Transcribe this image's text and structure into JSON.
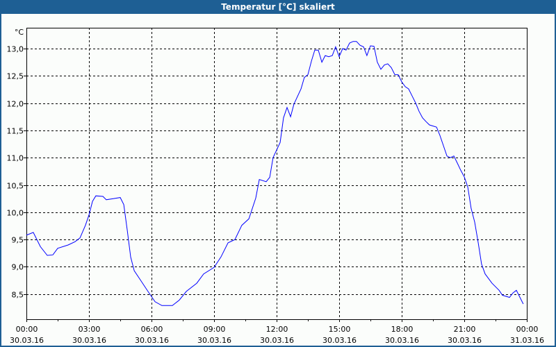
{
  "window": {
    "title": "Temperatur [°C] skaliert"
  },
  "chart_data": {
    "type": "line",
    "title": "Temperatur [°C] skaliert",
    "ylabel": "°C",
    "xlabel": "",
    "ylim": [
      8.04,
      13.38
    ],
    "xlim_hours": [
      0,
      24
    ],
    "grid": true,
    "yticks": [
      "13,0",
      "12,5",
      "12,0",
      "11,5",
      "11,0",
      "10,5",
      "10,0",
      "9,5",
      "9,0",
      "8,5"
    ],
    "ytick_values": [
      13.0,
      12.5,
      12.0,
      11.5,
      11.0,
      10.5,
      10.0,
      9.5,
      9.0,
      8.5
    ],
    "xticks": [
      {
        "time": "00:00",
        "date": "30.03.16",
        "h": 0
      },
      {
        "time": "03:00",
        "date": "30.03.16",
        "h": 3
      },
      {
        "time": "06:00",
        "date": "30.03.16",
        "h": 6
      },
      {
        "time": "09:00",
        "date": "30.03.16",
        "h": 9
      },
      {
        "time": "12:00",
        "date": "30.03.16",
        "h": 12
      },
      {
        "time": "15:00",
        "date": "30.03.16",
        "h": 15
      },
      {
        "time": "18:00",
        "date": "30.03.16",
        "h": 18
      },
      {
        "time": "21:00",
        "date": "30.03.16",
        "h": 21
      },
      {
        "time": "00:00",
        "date": "31.03.16",
        "h": 24
      }
    ],
    "series": [
      {
        "name": "Temperatur",
        "color": "#0000ff",
        "x": [
          0,
          0.33,
          0.67,
          1.0,
          1.27,
          1.5,
          2.0,
          2.33,
          2.57,
          2.83,
          3.0,
          3.17,
          3.33,
          3.67,
          3.83,
          4.17,
          4.5,
          4.67,
          4.83,
          5.0,
          5.17,
          5.5,
          5.83,
          6.17,
          6.5,
          7.0,
          7.33,
          7.67,
          8.17,
          8.5,
          9.0,
          9.33,
          9.67,
          10.0,
          10.33,
          10.67,
          11.0,
          11.17,
          11.5,
          11.67,
          11.83,
          12.17,
          12.33,
          12.5,
          12.67,
          12.83,
          13.17,
          13.33,
          13.5,
          13.67,
          13.83,
          14.0,
          14.17,
          14.33,
          14.5,
          14.67,
          14.83,
          15.0,
          15.17,
          15.33,
          15.5,
          15.67,
          15.83,
          16.0,
          16.17,
          16.33,
          16.5,
          16.67,
          16.83,
          17.0,
          17.17,
          17.33,
          17.5,
          17.67,
          17.83,
          18.0,
          18.17,
          18.33,
          18.5,
          18.67,
          18.83,
          19.0,
          19.17,
          19.33,
          19.67,
          19.83,
          20.0,
          20.17,
          20.33,
          20.5,
          20.67,
          20.83,
          21.0,
          21.17,
          21.33,
          21.5,
          21.67,
          21.83,
          22.0,
          22.33,
          22.67,
          22.83,
          23.17,
          23.33,
          23.5,
          23.67,
          23.83
        ],
        "y": [
          9.58,
          9.63,
          9.37,
          9.21,
          9.22,
          9.34,
          9.4,
          9.46,
          9.53,
          9.76,
          9.95,
          10.2,
          10.3,
          10.29,
          10.23,
          10.25,
          10.27,
          10.14,
          9.69,
          9.18,
          8.93,
          8.74,
          8.55,
          8.36,
          8.29,
          8.29,
          8.39,
          8.55,
          8.7,
          8.87,
          8.99,
          9.18,
          9.44,
          9.5,
          9.76,
          9.88,
          10.26,
          10.6,
          10.56,
          10.64,
          11.0,
          11.28,
          11.73,
          11.92,
          11.75,
          11.98,
          12.26,
          12.47,
          12.52,
          12.77,
          12.97,
          12.97,
          12.75,
          12.87,
          12.85,
          12.87,
          13.03,
          12.85,
          13.0,
          12.97,
          13.1,
          13.13,
          13.13,
          13.06,
          13.03,
          12.87,
          13.05,
          13.04,
          12.75,
          12.62,
          12.7,
          12.72,
          12.65,
          12.52,
          12.52,
          12.39,
          12.3,
          12.26,
          12.13,
          12.0,
          11.85,
          11.73,
          11.66,
          11.6,
          11.56,
          11.41,
          11.22,
          11.03,
          11.0,
          11.03,
          10.9,
          10.77,
          10.65,
          10.46,
          10.07,
          9.82,
          9.44,
          9.05,
          8.87,
          8.7,
          8.57,
          8.48,
          8.44,
          8.52,
          8.57,
          8.44,
          8.32
        ]
      }
    ]
  }
}
